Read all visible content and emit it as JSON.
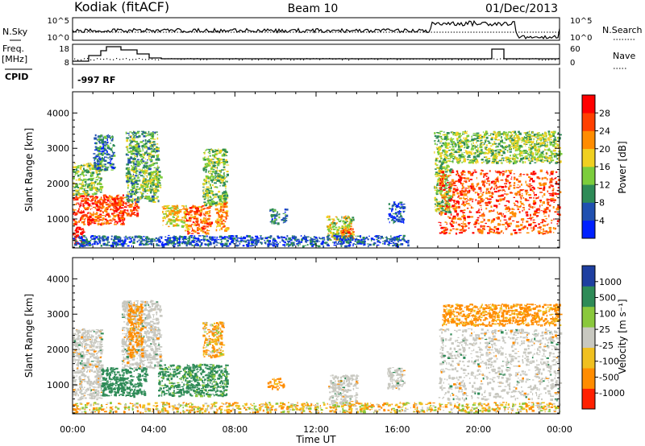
{
  "header": {
    "radar": "Kodiak (fitACF)",
    "beam": "Beam 10",
    "date": "01/Dec/2013"
  },
  "top_panels": {
    "nsky_label": "N.Sky",
    "nsearch_label": "N.Search",
    "noise_ticks": [
      "10^5",
      "10^0"
    ],
    "freq_label": "Freq.",
    "freq_unit": "[MHz]",
    "freq_ticks": [
      "18",
      "8"
    ],
    "nave_label": "Nave",
    "nave_ticks": [
      "60",
      "0"
    ],
    "cpid_label": "CPID",
    "cpid_value": "-997 RF"
  },
  "x_axis": {
    "label": "Time UT",
    "ticks": [
      "00:00",
      "04:00",
      "08:00",
      "12:00",
      "16:00",
      "20:00",
      "00:00"
    ]
  },
  "power_panel": {
    "ylabel": "Slant Range [km]",
    "yticks": [
      "4000",
      "3000",
      "2000",
      "1000"
    ],
    "colorbar_label": "Power [dB]",
    "colorbar_ticks": [
      "28",
      "24",
      "20",
      "16",
      "12",
      "8",
      "4"
    ]
  },
  "velocity_panel": {
    "ylabel": "Slant Range [km]",
    "yticks": [
      "4000",
      "3000",
      "2000",
      "1000"
    ],
    "colorbar_label": "Velocity [m s⁻¹]",
    "colorbar_ticks": [
      "1000",
      "500",
      "100",
      "25",
      "-25",
      "-100",
      "-500",
      "-1000"
    ]
  },
  "colors": {
    "power_scale": [
      "#0020ff",
      "#2050b0",
      "#2e8b57",
      "#7ccd3c",
      "#f0d020",
      "#ff8c00",
      "#ff4000",
      "#ff0000"
    ],
    "velocity_scale": [
      "#1e3fa0",
      "#2e8b57",
      "#8ac83c",
      "#c8c8c0",
      "#f0c020",
      "#ff8c00",
      "#ff2000"
    ],
    "ground_scatter": "#c8c8c0"
  },
  "chart_data": [
    {
      "type": "heatmap",
      "title": "Power",
      "x": {
        "label": "Time UT",
        "range_hours": [
          0,
          24
        ]
      },
      "y": {
        "label": "Slant Range [km]",
        "range": [
          180,
          4600
        ]
      },
      "z": {
        "label": "Power [dB]",
        "range": [
          0,
          32
        ]
      },
      "regions": [
        {
          "t": [
            0.0,
            2.5
          ],
          "r": [
            850,
            1700
          ],
          "z": 26
        },
        {
          "t": [
            0.0,
            1.4
          ],
          "r": [
            1700,
            2600
          ],
          "z": 14
        },
        {
          "t": [
            0.0,
            0.5
          ],
          "r": [
            300,
            800
          ],
          "z": 30
        },
        {
          "t": [
            1.0,
            2.0
          ],
          "r": [
            2400,
            3400
          ],
          "z": 8
        },
        {
          "t": [
            2.0,
            3.2
          ],
          "r": [
            1100,
            1600
          ],
          "z": 28
        },
        {
          "t": [
            2.6,
            4.2
          ],
          "r": [
            1500,
            3500
          ],
          "z": 12
        },
        {
          "t": [
            3.4,
            4.3
          ],
          "r": [
            1800,
            2400
          ],
          "z": 14
        },
        {
          "t": [
            4.4,
            5.6
          ],
          "r": [
            800,
            1400
          ],
          "z": 18
        },
        {
          "t": [
            5.5,
            6.8
          ],
          "r": [
            600,
            1400
          ],
          "z": 24
        },
        {
          "t": [
            6.4,
            7.6
          ],
          "r": [
            1400,
            3000
          ],
          "z": 14
        },
        {
          "t": [
            7.0,
            7.6
          ],
          "r": [
            700,
            1500
          ],
          "z": 22
        },
        {
          "t": [
            9.7,
            10.5
          ],
          "r": [
            900,
            1300
          ],
          "z": 8
        },
        {
          "t": [
            12.5,
            13.8
          ],
          "r": [
            400,
            1100
          ],
          "z": 16
        },
        {
          "t": [
            13.2,
            13.8
          ],
          "r": [
            500,
            750
          ],
          "z": 24
        },
        {
          "t": [
            15.5,
            16.3
          ],
          "r": [
            900,
            1500
          ],
          "z": 6
        },
        {
          "t": [
            17.8,
            18.6
          ],
          "r": [
            1200,
            3500
          ],
          "z": 14
        },
        {
          "t": [
            18.0,
            24.0
          ],
          "r": [
            600,
            2400
          ],
          "z": 26
        },
        {
          "t": [
            18.6,
            24.0
          ],
          "r": [
            2600,
            3500
          ],
          "z": 14
        },
        {
          "t": [
            0.0,
            16.5
          ],
          "r": [
            250,
            550
          ],
          "z": 6
        }
      ]
    },
    {
      "type": "heatmap",
      "title": "Velocity",
      "x": {
        "label": "Time UT",
        "range_hours": [
          0,
          24
        ]
      },
      "y": {
        "label": "Slant Range [km]",
        "range": [
          180,
          4600
        ]
      },
      "z": {
        "label": "Velocity [m s⁻¹]",
        "range": [
          -1000,
          1000
        ]
      },
      "regions": [
        {
          "t": [
            0.0,
            1.4
          ],
          "r": [
            600,
            2600
          ],
          "z": 0,
          "ground_scatter": true
        },
        {
          "t": [
            1.4,
            3.6
          ],
          "r": [
            700,
            1500
          ],
          "z": 250
        },
        {
          "t": [
            2.4,
            4.3
          ],
          "r": [
            1500,
            3400
          ],
          "z": 0,
          "ground_scatter": true
        },
        {
          "t": [
            2.7,
            3.4
          ],
          "r": [
            1800,
            3300
          ],
          "z": -200
        },
        {
          "t": [
            4.2,
            7.6
          ],
          "r": [
            700,
            1600
          ],
          "z": 200
        },
        {
          "t": [
            6.4,
            7.4
          ],
          "r": [
            1800,
            2800
          ],
          "z": -100
        },
        {
          "t": [
            9.6,
            10.4
          ],
          "r": [
            900,
            1200
          ],
          "z": -200
        },
        {
          "t": [
            12.6,
            14.0
          ],
          "r": [
            400,
            1300
          ],
          "z": 0,
          "ground_scatter": true
        },
        {
          "t": [
            15.5,
            16.3
          ],
          "r": [
            900,
            1500
          ],
          "z": 0,
          "ground_scatter": true
        },
        {
          "t": [
            18.0,
            24.0
          ],
          "r": [
            600,
            2600
          ],
          "z": 0,
          "ground_scatter": true
        },
        {
          "t": [
            18.2,
            24.0
          ],
          "r": [
            2700,
            3300
          ],
          "z": -200
        },
        {
          "t": [
            0.0,
            24.0
          ],
          "r": [
            220,
            520
          ],
          "z": -50
        }
      ]
    }
  ]
}
